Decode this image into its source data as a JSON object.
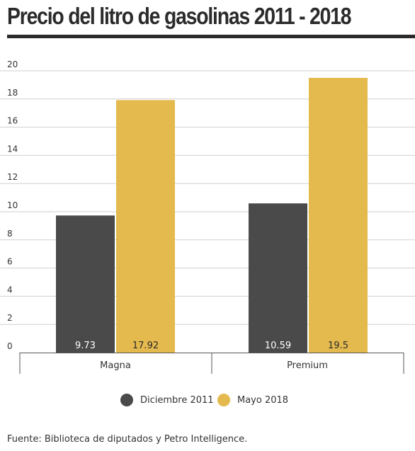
{
  "title": "Precio del litro de gasolinas 2011 - 2018",
  "source": "Fuente: Biblioteca de diputados y Petro Intelligence.",
  "colors": {
    "series1": "#4a4a4a",
    "series2": "#e4b94e",
    "grid": "#cfcfcf",
    "text": "#333333"
  },
  "chart_data": {
    "type": "bar",
    "categories": [
      "Magna",
      "Premium"
    ],
    "series": [
      {
        "name": "Diciembre 2011",
        "values": [
          9.73,
          10.59
        ],
        "labels": [
          "9.73",
          "10.59"
        ]
      },
      {
        "name": "Mayo 2018",
        "values": [
          17.92,
          19.5
        ],
        "labels": [
          "17.92",
          "19.5"
        ]
      }
    ],
    "yticks": [
      "0",
      "2",
      "4",
      "6",
      "8",
      "10",
      "12",
      "14",
      "16",
      "18",
      "20"
    ],
    "ylim": [
      0,
      20
    ],
    "grid": true,
    "legend": "bottom"
  }
}
